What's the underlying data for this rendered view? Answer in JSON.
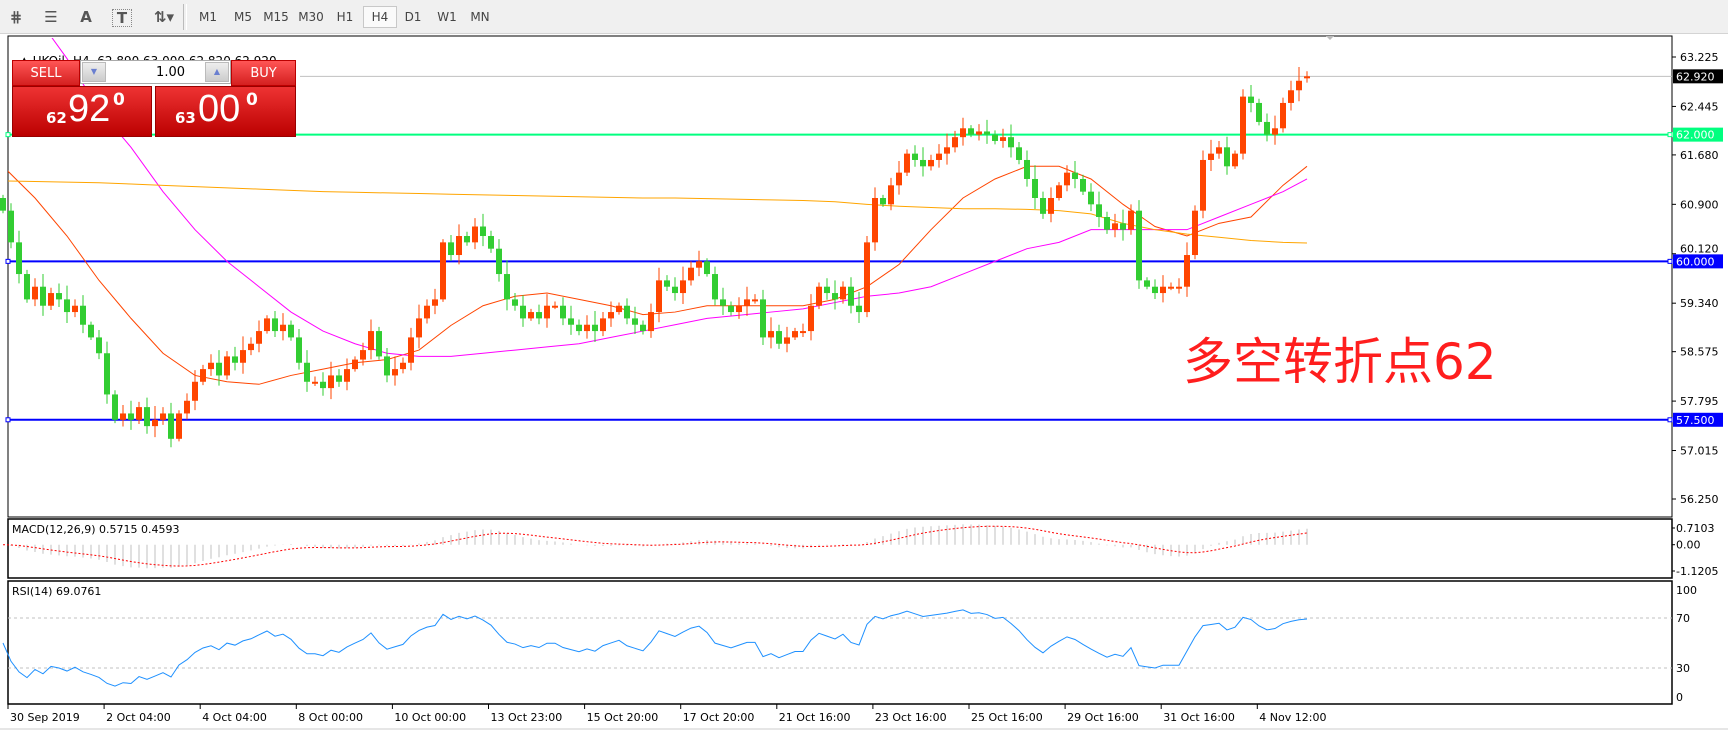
{
  "toolbar": {
    "tools": [
      {
        "name": "elliott-wave-icon",
        "glyph": "⋕"
      },
      {
        "name": "fibonacci-icon",
        "glyph": "☰"
      },
      {
        "name": "text-icon",
        "glyph": "A"
      },
      {
        "name": "text-label-icon",
        "glyph": "T"
      },
      {
        "name": "arrows-icon",
        "glyph": "⇅▾"
      }
    ],
    "timeframes": [
      "M1",
      "M5",
      "M15",
      "M30",
      "H1",
      "H4",
      "D1",
      "W1",
      "MN"
    ],
    "active_timeframe": "H4"
  },
  "chart": {
    "symbol_line": "UKOil-,H4  62.890 63.000 62.820 62.920",
    "annotation": "多空转折点62",
    "colors": {
      "up": "#ff4500",
      "down": "#32cd32",
      "fast_ma": "#ff4500",
      "mid_ma": "#ff00ff",
      "slow_ma": "#ffa500",
      "level_62": "#00ff7f",
      "level_blue": "#0000ff",
      "rsi": "#1e90ff",
      "macd_hist": "#c0c0c0",
      "macd_signal": "#ff0000"
    }
  },
  "one_click": {
    "sell_label": "SELL",
    "buy_label": "BUY",
    "volume": "1.00",
    "sell_price": {
      "prefix": "62",
      "main": "92",
      "sup": "0"
    },
    "buy_price": {
      "prefix": "63",
      "main": "00",
      "sup": "0"
    }
  },
  "price_axis": {
    "ticks": [
      "63.225",
      "62.445",
      "61.680",
      "60.900",
      "60.120",
      "59.340",
      "58.575",
      "57.795",
      "57.015",
      "56.250"
    ],
    "current": "62.920",
    "levels": [
      {
        "label": "62.000",
        "value": 62.0,
        "color": "#00ff7f"
      },
      {
        "label": "60.000",
        "value": 60.0,
        "color": "#0000ff"
      },
      {
        "label": "57.500",
        "value": 57.5,
        "color": "#0000ff"
      }
    ]
  },
  "macd": {
    "label": "MACD(12,26,9) 0.5715 0.4593",
    "ticks": [
      "0.7103",
      "0.00",
      "-1.1205"
    ]
  },
  "rsi": {
    "label": "RSI(14) 69.0761",
    "ticks": [
      "100",
      "70",
      "30",
      "0"
    ]
  },
  "time_axis": [
    "30 Sep 2019",
    "2 Oct 04:00",
    "4 Oct 04:00",
    "8 Oct 00:00",
    "10 Oct 00:00",
    "13 Oct 23:00",
    "15 Oct 20:00",
    "17 Oct 20:00",
    "21 Oct 16:00",
    "23 Oct 16:00",
    "25 Oct 16:00",
    "29 Oct 16:00",
    "31 Oct 16:00",
    "4 Nov 12:00"
  ],
  "chart_data": {
    "type": "candlestick",
    "symbol": "UKOil-",
    "timeframe": "H4",
    "ylim": [
      56.25,
      63.225
    ],
    "close": [
      60.8,
      60.3,
      59.8,
      59.4,
      59.6,
      59.3,
      59.5,
      59.4,
      59.2,
      59.3,
      59.0,
      58.8,
      58.55,
      57.9,
      57.5,
      57.6,
      57.5,
      57.7,
      57.4,
      57.5,
      57.6,
      57.2,
      57.6,
      57.8,
      58.1,
      58.3,
      58.4,
      58.2,
      58.5,
      58.4,
      58.6,
      58.7,
      58.9,
      59.1,
      58.9,
      59.0,
      58.8,
      58.4,
      58.1,
      58.1,
      58.0,
      58.2,
      58.1,
      58.3,
      58.45,
      58.6,
      58.9,
      58.5,
      58.2,
      58.3,
      58.4,
      58.8,
      59.1,
      59.3,
      59.4,
      60.3,
      60.1,
      60.4,
      60.3,
      60.55,
      60.4,
      60.2,
      59.8,
      59.4,
      59.3,
      59.1,
      59.2,
      59.1,
      59.3,
      59.3,
      59.1,
      59.0,
      58.9,
      59.0,
      58.9,
      59.1,
      59.2,
      59.3,
      59.1,
      59.0,
      58.9,
      59.2,
      59.7,
      59.6,
      59.5,
      59.7,
      59.9,
      60.0,
      59.8,
      59.4,
      59.3,
      59.2,
      59.3,
      59.4,
      59.4,
      58.8,
      58.9,
      58.7,
      58.8,
      58.9,
      58.9,
      59.3,
      59.6,
      59.5,
      59.4,
      59.6,
      59.3,
      59.2,
      60.3,
      61.0,
      60.9,
      61.2,
      61.4,
      61.7,
      61.6,
      61.5,
      61.6,
      61.7,
      61.8,
      61.96,
      62.1,
      62.0,
      62.05,
      62.0,
      61.9,
      61.96,
      61.8,
      61.6,
      61.3,
      61.0,
      60.75,
      61.0,
      61.2,
      61.4,
      61.3,
      61.1,
      60.9,
      60.7,
      60.5,
      60.6,
      60.5,
      60.8,
      59.7,
      59.6,
      59.5,
      59.6,
      59.6,
      59.6,
      60.1,
      60.8,
      61.6,
      61.7,
      61.8,
      61.5,
      61.7,
      62.6,
      62.5,
      62.2,
      62.0,
      62.1,
      62.5,
      62.7,
      62.85,
      62.92
    ],
    "last_bar": {
      "open": 62.89,
      "high": 63.0,
      "low": 62.82,
      "close": 62.92
    },
    "moving_averages": [
      {
        "color": "#ff4500",
        "values": [
          61.5,
          61.0,
          60.4,
          59.7,
          59.1,
          58.55,
          58.2,
          58.1,
          58.06,
          58.2,
          58.3,
          58.4,
          58.45,
          58.6,
          58.99,
          59.3,
          59.45,
          59.5,
          59.4,
          59.3,
          59.16,
          59.2,
          59.3,
          59.3,
          59.3,
          59.3,
          59.4,
          59.6,
          59.95,
          60.5,
          61.0,
          61.3,
          61.5,
          61.5,
          61.3,
          60.9,
          60.55,
          60.4,
          60.6,
          60.7,
          61.2,
          61.5
        ]
      },
      {
        "color": "#ff00ff",
        "values": [
          64.5,
          63.9,
          63.2,
          62.4,
          61.8,
          61.1,
          60.5,
          60.0,
          59.6,
          59.2,
          58.9,
          58.7,
          58.55,
          58.5,
          58.5,
          58.55,
          58.6,
          58.65,
          58.7,
          58.8,
          58.9,
          59.0,
          59.1,
          59.15,
          59.2,
          59.25,
          59.35,
          59.45,
          59.5,
          59.6,
          59.8,
          60.0,
          60.2,
          60.3,
          60.5,
          60.5,
          60.5,
          60.5,
          60.7,
          60.9,
          61.1,
          61.3
        ]
      },
      {
        "color": "#ffa500",
        "values": [
          61.27,
          61.26,
          61.25,
          61.24,
          61.22,
          61.2,
          61.18,
          61.16,
          61.14,
          61.12,
          61.1,
          61.09,
          61.08,
          61.07,
          61.06,
          61.05,
          61.04,
          61.03,
          61.02,
          61.01,
          61.0,
          61.0,
          60.99,
          60.98,
          60.97,
          60.96,
          60.94,
          60.9,
          60.87,
          60.85,
          60.83,
          60.83,
          60.82,
          60.8,
          60.75,
          60.6,
          60.5,
          60.43,
          60.38,
          60.33,
          60.3,
          60.29
        ]
      }
    ],
    "macd_params": [
      12,
      26,
      9
    ],
    "macd_ylim": [
      -1.1205,
      0.7103
    ],
    "rsi_period": 14,
    "rsi_levels": [
      70,
      30
    ]
  }
}
